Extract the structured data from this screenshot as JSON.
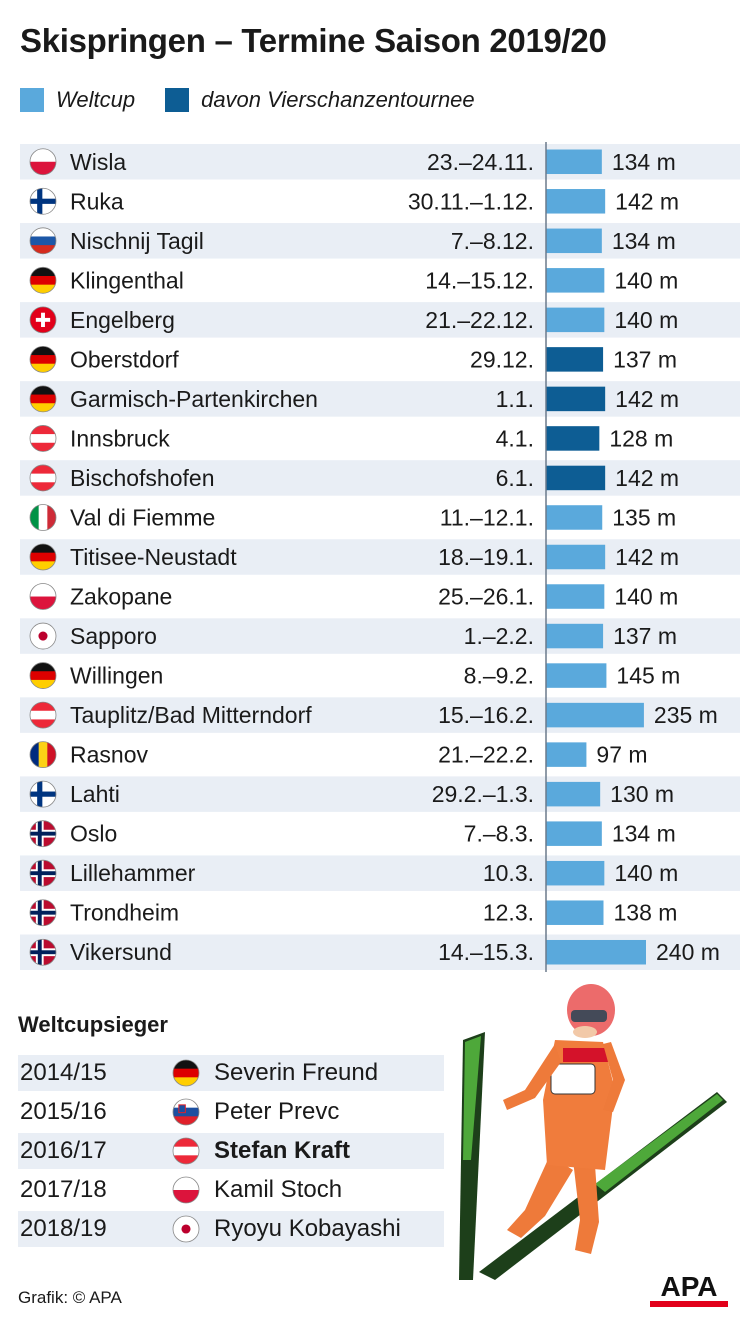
{
  "title": "Skispringen – Termine Saison 2019/20",
  "legend": {
    "weltcup_label": "Weltcup",
    "tournee_label": "davon Vierschanzentournee",
    "weltcup_color": "#5aa9dc",
    "tournee_color": "#0d5d94"
  },
  "chart_data": {
    "type": "bar",
    "orientation": "horizontal",
    "value_unit": "m",
    "categories": [
      "Wisla",
      "Ruka",
      "Nischnij Tagil",
      "Klingenthal",
      "Engelberg",
      "Oberstdorf",
      "Garmisch-Partenkirchen",
      "Innsbruck",
      "Bischofshofen",
      "Val di Fiemme",
      "Titisee-Neustadt",
      "Zakopane",
      "Sapporo",
      "Willingen",
      "Tauplitz/Bad Mitterndorf",
      "Rasnov",
      "Lahti",
      "Oslo",
      "Lillehammer",
      "Trondheim",
      "Vikersund"
    ],
    "dates": [
      "23.–24.11.",
      "30.11.–1.12.",
      "7.–8.12.",
      "14.–15.12.",
      "21.–22.12.",
      "29.12.",
      "1.1.",
      "4.1.",
      "6.1.",
      "11.–12.1.",
      "18.–19.1.",
      "25.–26.1.",
      "1.–2.2.",
      "8.–9.2.",
      "15.–16.2.",
      "21.–22.2.",
      "29.2.–1.3.",
      "7.–8.3.",
      "10.3.",
      "12.3.",
      "14.–15.3."
    ],
    "values": [
      134,
      142,
      134,
      140,
      140,
      137,
      142,
      128,
      142,
      135,
      142,
      140,
      137,
      145,
      235,
      97,
      130,
      134,
      140,
      138,
      240
    ],
    "value_labels": [
      "134 m",
      "142 m",
      "134 m",
      "140 m",
      "140 m",
      "137 m",
      "142 m",
      "128 m",
      "142 m",
      "135 m",
      "142 m",
      "140 m",
      "137 m",
      "145 m",
      "235 m",
      "97 m",
      "130 m",
      "134 m",
      "140 m",
      "138 m",
      "240 m"
    ],
    "vierschanzentournee": [
      false,
      false,
      false,
      false,
      false,
      true,
      true,
      true,
      true,
      false,
      false,
      false,
      false,
      false,
      false,
      false,
      false,
      false,
      false,
      false,
      false
    ],
    "countries": [
      "pl",
      "fi",
      "ru",
      "de",
      "ch",
      "de",
      "de",
      "at",
      "at",
      "it",
      "de",
      "pl",
      "jp",
      "de",
      "at",
      "ro",
      "fi",
      "no",
      "no",
      "no",
      "no"
    ],
    "xlim": [
      0,
      240
    ]
  },
  "winners": {
    "title": "Weltcupsieger",
    "rows": [
      {
        "season": "2014/15",
        "name": "Severin Freund",
        "country": "de",
        "bold": false
      },
      {
        "season": "2015/16",
        "name": "Peter Prevc",
        "country": "si",
        "bold": false
      },
      {
        "season": "2016/17",
        "name": "Stefan Kraft",
        "country": "at",
        "bold": true
      },
      {
        "season": "2017/18",
        "name": "Kamil Stoch",
        "country": "pl",
        "bold": false
      },
      {
        "season": "2018/19",
        "name": "Ryoyu Kobayashi",
        "country": "jp",
        "bold": false
      }
    ]
  },
  "credit": "Grafik: © APA",
  "logo_text": "APA",
  "colors": {
    "row_shade": "#e9eef5",
    "axis_line": "#6b7a8c",
    "logo_red": "#e2001a"
  }
}
